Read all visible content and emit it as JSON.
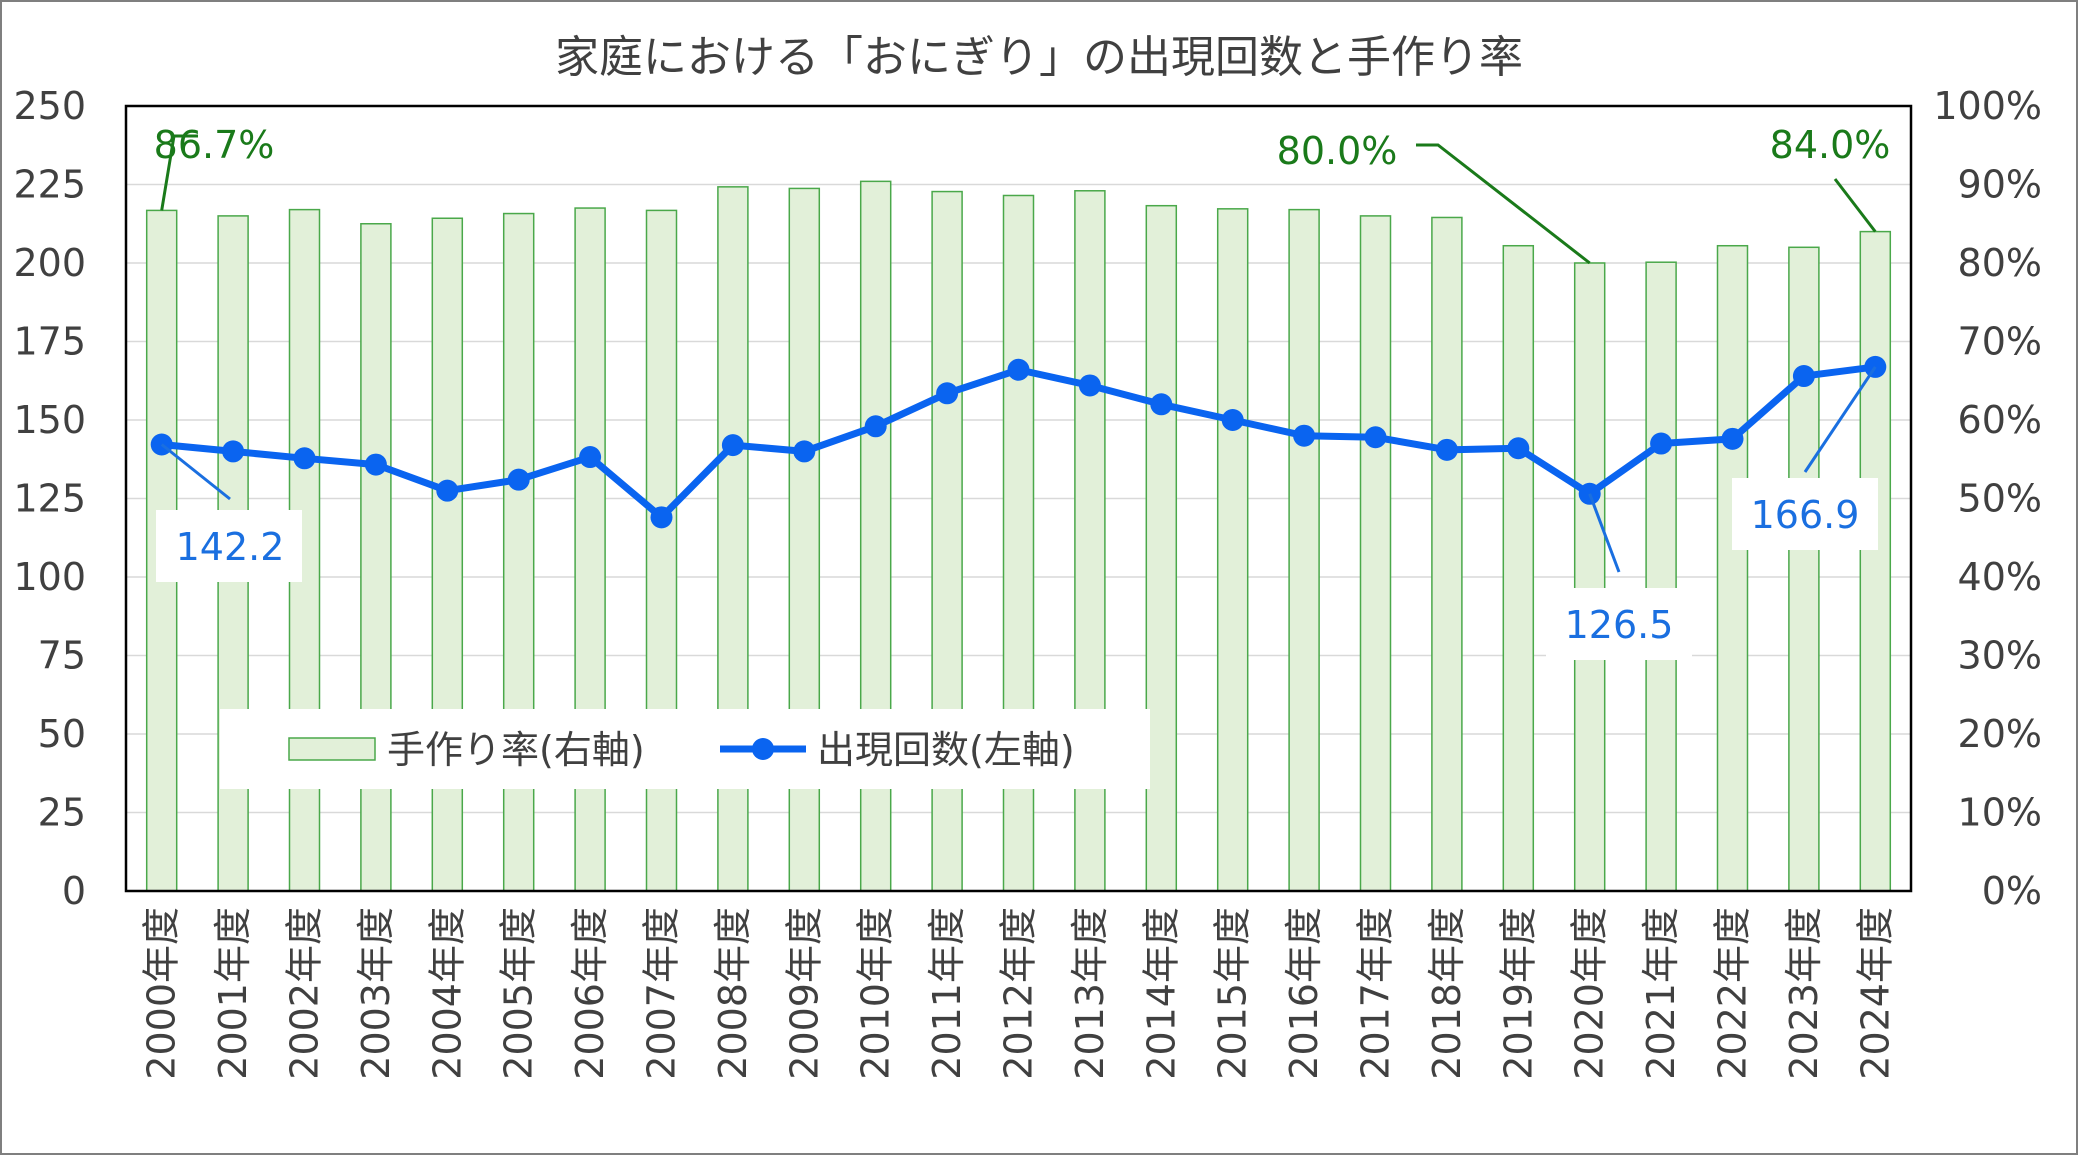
{
  "chart_data": {
    "type": "bar+line",
    "title": "家庭における「おにぎり」の出現回数と手作り率",
    "categories": [
      "2000年度",
      "2001年度",
      "2002年度",
      "2003年度",
      "2004年度",
      "2005年度",
      "2006年度",
      "2007年度",
      "2008年度",
      "2009年度",
      "2010年度",
      "2011年度",
      "2012年度",
      "2013年度",
      "2014年度",
      "2015年度",
      "2016年度",
      "2017年度",
      "2018年度",
      "2019年度",
      "2020年度",
      "2021年度",
      "2022年度",
      "2023年度",
      "2024年度"
    ],
    "series": [
      {
        "name": "手作り率(右軸)",
        "kind": "bar",
        "axis": "right",
        "color": "#e2f0d9",
        "stroke": "#4aa84a",
        "values": [
          86.7,
          86.0,
          86.8,
          85.0,
          85.7,
          86.3,
          87.0,
          86.7,
          89.7,
          89.5,
          90.4,
          89.1,
          88.6,
          89.2,
          87.3,
          86.9,
          86.8,
          86.0,
          85.8,
          82.2,
          80.0,
          80.1,
          82.2,
          82.0,
          84.0
        ]
      },
      {
        "name": "出現回数(左軸)",
        "kind": "line",
        "axis": "left",
        "color": "#0a64f0",
        "values": [
          142.2,
          140.0,
          137.8,
          135.8,
          127.5,
          131.0,
          138.2,
          119.0,
          142.0,
          140.0,
          148.0,
          158.5,
          166.0,
          161.0,
          155.0,
          150.0,
          145.0,
          144.5,
          140.5,
          141.0,
          126.5,
          142.5,
          144.0,
          164.0,
          166.9
        ]
      }
    ],
    "left_axis": {
      "ylim": [
        0,
        250
      ],
      "ticks": [
        "0",
        "25",
        "50",
        "75",
        "100",
        "125",
        "150",
        "175",
        "200",
        "225",
        "250"
      ]
    },
    "right_axis": {
      "ylim": [
        0,
        100
      ],
      "ticks": [
        "0%",
        "10%",
        "20%",
        "30%",
        "40%",
        "50%",
        "60%",
        "70%",
        "80%",
        "90%",
        "100%"
      ]
    },
    "grid": true,
    "legend": {
      "placement": "bottom-left"
    },
    "annotations": [
      {
        "series": "bar",
        "index": 0,
        "text": "86.7%"
      },
      {
        "series": "bar",
        "index": 20,
        "text": "80.0%"
      },
      {
        "series": "bar",
        "index": 24,
        "text": "84.0%"
      },
      {
        "series": "line",
        "index": 0,
        "text": "142.2"
      },
      {
        "series": "line",
        "index": 20,
        "text": "126.5"
      },
      {
        "series": "line",
        "index": 24,
        "text": "166.9"
      }
    ]
  }
}
